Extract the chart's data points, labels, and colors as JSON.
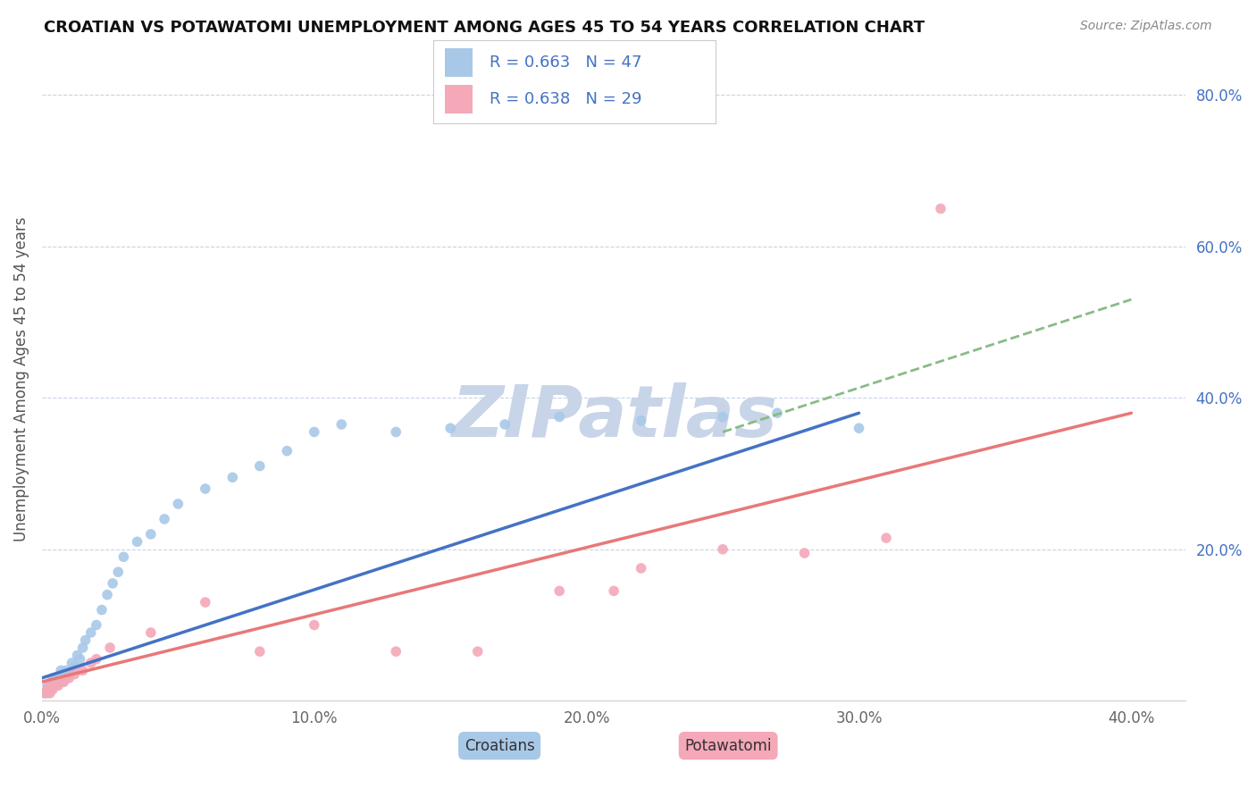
{
  "title": "CROATIAN VS POTAWATOMI UNEMPLOYMENT AMONG AGES 45 TO 54 YEARS CORRELATION CHART",
  "source_text": "Source: ZipAtlas.com",
  "ylabel": "Unemployment Among Ages 45 to 54 years",
  "xlim": [
    0.0,
    0.42
  ],
  "ylim": [
    0.0,
    0.85
  ],
  "xtick_labels": [
    "0.0%",
    "10.0%",
    "20.0%",
    "30.0%",
    "40.0%"
  ],
  "xtick_values": [
    0.0,
    0.1,
    0.2,
    0.3,
    0.4
  ],
  "ytick_labels": [
    "20.0%",
    "40.0%",
    "60.0%",
    "80.0%"
  ],
  "ytick_values": [
    0.2,
    0.4,
    0.6,
    0.8
  ],
  "croatian_color": "#a8c8e8",
  "potawatomi_color": "#f4a8b8",
  "croatian_line_color": "#4472c4",
  "potawatomi_line_color": "#e87878",
  "dashed_line_color": "#88bb88",
  "legend_text_color": "#4472c4",
  "legend_box_color_croatian": "#a8c8e8",
  "legend_box_color_potawatomi": "#f4a8b8",
  "watermark_color": "#c8d4e8",
  "R_croatian": 0.663,
  "N_croatian": 47,
  "R_potawatomi": 0.638,
  "N_potawatomi": 29,
  "croatian_x": [
    0.001,
    0.002,
    0.002,
    0.003,
    0.003,
    0.004,
    0.004,
    0.005,
    0.005,
    0.006,
    0.006,
    0.007,
    0.007,
    0.008,
    0.009,
    0.01,
    0.011,
    0.012,
    0.013,
    0.014,
    0.015,
    0.016,
    0.018,
    0.02,
    0.022,
    0.024,
    0.026,
    0.028,
    0.03,
    0.035,
    0.04,
    0.045,
    0.05,
    0.06,
    0.07,
    0.08,
    0.09,
    0.1,
    0.11,
    0.13,
    0.15,
    0.17,
    0.19,
    0.22,
    0.25,
    0.27,
    0.3
  ],
  "croatian_y": [
    0.01,
    0.01,
    0.02,
    0.015,
    0.02,
    0.02,
    0.03,
    0.02,
    0.025,
    0.025,
    0.03,
    0.03,
    0.04,
    0.025,
    0.04,
    0.035,
    0.05,
    0.045,
    0.06,
    0.055,
    0.07,
    0.08,
    0.09,
    0.1,
    0.12,
    0.14,
    0.155,
    0.17,
    0.19,
    0.21,
    0.22,
    0.24,
    0.26,
    0.28,
    0.295,
    0.31,
    0.33,
    0.355,
    0.365,
    0.355,
    0.36,
    0.365,
    0.375,
    0.37,
    0.375,
    0.38,
    0.36
  ],
  "potawatomi_x": [
    0.001,
    0.002,
    0.003,
    0.003,
    0.004,
    0.005,
    0.006,
    0.007,
    0.008,
    0.009,
    0.01,
    0.012,
    0.015,
    0.018,
    0.02,
    0.025,
    0.04,
    0.06,
    0.08,
    0.1,
    0.13,
    0.16,
    0.19,
    0.21,
    0.22,
    0.25,
    0.28,
    0.31,
    0.33
  ],
  "potawatomi_y": [
    0.01,
    0.015,
    0.01,
    0.02,
    0.015,
    0.02,
    0.02,
    0.025,
    0.025,
    0.03,
    0.03,
    0.035,
    0.04,
    0.05,
    0.055,
    0.07,
    0.09,
    0.13,
    0.065,
    0.1,
    0.065,
    0.065,
    0.145,
    0.145,
    0.175,
    0.2,
    0.195,
    0.215,
    0.65
  ],
  "croatian_line_x": [
    0.0,
    0.3
  ],
  "croatian_line_y": [
    0.03,
    0.38
  ],
  "potawatomi_line_x": [
    0.0,
    0.4
  ],
  "potawatomi_line_y": [
    0.025,
    0.38
  ],
  "dashed_line_x": [
    0.25,
    0.4
  ],
  "dashed_line_y": [
    0.355,
    0.53
  ],
  "background_color": "#ffffff",
  "grid_color": "#c8d4e8"
}
